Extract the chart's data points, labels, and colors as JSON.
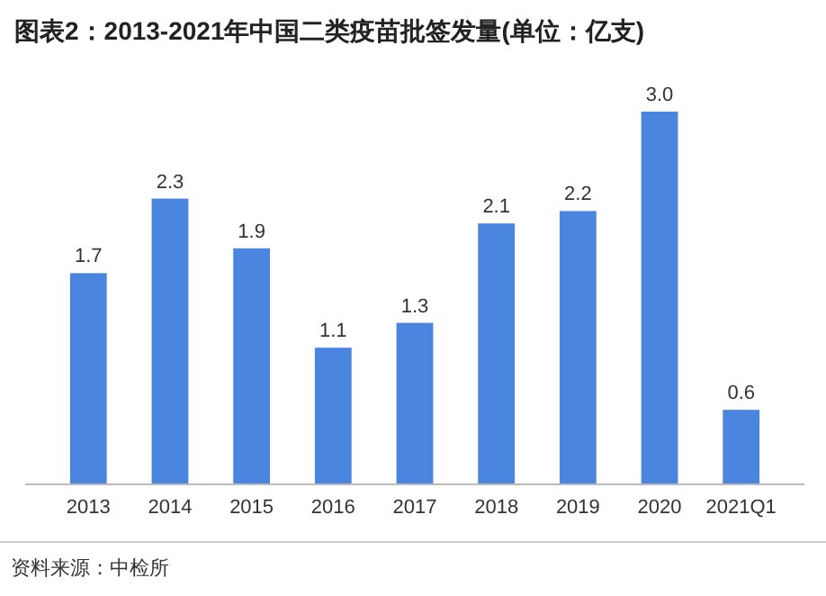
{
  "chart_data": {
    "type": "bar",
    "title": "图表2：2013-2021年中国二类疫苗批签发量(单位：亿支)",
    "categories": [
      "2013",
      "2014",
      "2015",
      "2016",
      "2017",
      "2018",
      "2019",
      "2020",
      "2021Q1"
    ],
    "values": [
      1.7,
      2.3,
      1.9,
      1.1,
      1.3,
      2.1,
      2.2,
      3.0,
      0.6
    ],
    "value_labels": [
      "1.7",
      "2.3",
      "1.9",
      "1.1",
      "1.3",
      "2.1",
      "2.2",
      "3.0",
      "0.6"
    ],
    "color": "#4a86e0",
    "annotations": [
      "资料来源：中检所"
    ]
  }
}
